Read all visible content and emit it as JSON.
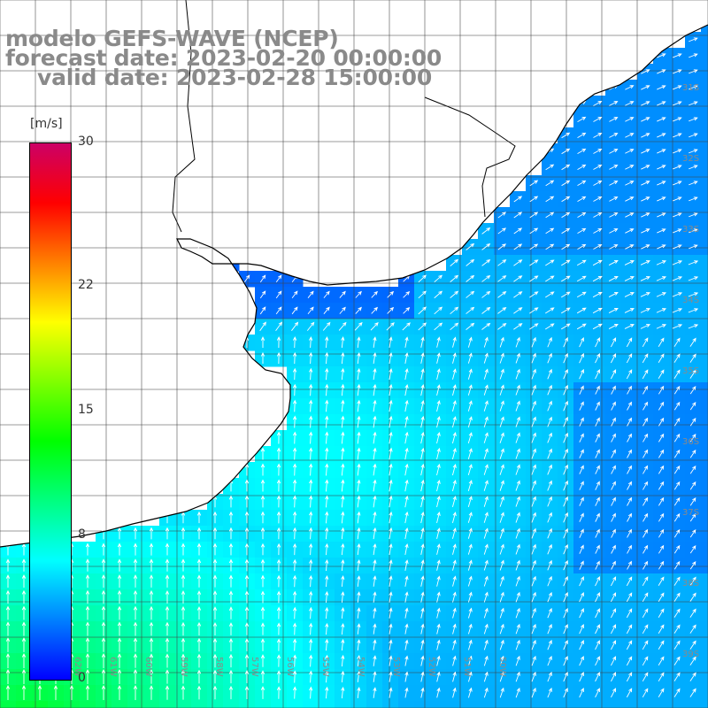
{
  "title": {
    "line1": "modelo GEFS-WAVE (NCEP)",
    "line2": "forecast date: 2023-02-20 00:00:00",
    "line3": "valid date: 2023-02-28 15:00:00"
  },
  "colorbar": {
    "unit": "[m/s]",
    "min": 0,
    "max": 30,
    "ticks": [
      "30",
      "22",
      "15",
      "8",
      "0"
    ],
    "tick_values": [
      30,
      22,
      15,
      8,
      0
    ],
    "gradient": [
      "#0000ff",
      "#0080ff",
      "#00ffff",
      "#00ff80",
      "#00ff00",
      "#80ff00",
      "#ffff00",
      "#ff8000",
      "#ff0000",
      "#cc0066"
    ]
  },
  "map": {
    "lon_range": [
      -64,
      -44
    ],
    "lat_range": [
      -40,
      -30
    ],
    "lon_labels": [
      {
        "lon": -63,
        "text": "63W"
      },
      {
        "lon": -62,
        "text": "62W"
      },
      {
        "lon": -61,
        "text": "61W"
      },
      {
        "lon": -60,
        "text": "60W"
      },
      {
        "lon": -59,
        "text": "59W"
      },
      {
        "lon": -58,
        "text": "58W"
      },
      {
        "lon": -57,
        "text": "57W"
      },
      {
        "lon": -56,
        "text": "56W"
      },
      {
        "lon": -55,
        "text": "55W"
      },
      {
        "lon": -54,
        "text": "54W"
      },
      {
        "lon": -53,
        "text": "53W"
      },
      {
        "lon": -52,
        "text": "52W"
      },
      {
        "lon": -51,
        "text": "51W"
      },
      {
        "lon": -50,
        "text": "50W"
      }
    ],
    "lat_labels": [
      {
        "lat": -31,
        "text": "31S"
      },
      {
        "lat": -32,
        "text": "32S"
      },
      {
        "lat": -33,
        "text": "33S"
      },
      {
        "lat": -34,
        "text": "34S"
      },
      {
        "lat": -35,
        "text": "35S"
      },
      {
        "lat": -36,
        "text": "36S"
      },
      {
        "lat": -37,
        "text": "37S"
      },
      {
        "lat": -38,
        "text": "38S"
      },
      {
        "lat": -39,
        "text": "39S"
      },
      {
        "lat": -40,
        "text": "40S"
      }
    ],
    "colors": {
      "land": "#ffffff",
      "coast": "#000000",
      "grid": "#404040",
      "arrow": "#ffffff",
      "label": "#8a8a8a"
    }
  }
}
